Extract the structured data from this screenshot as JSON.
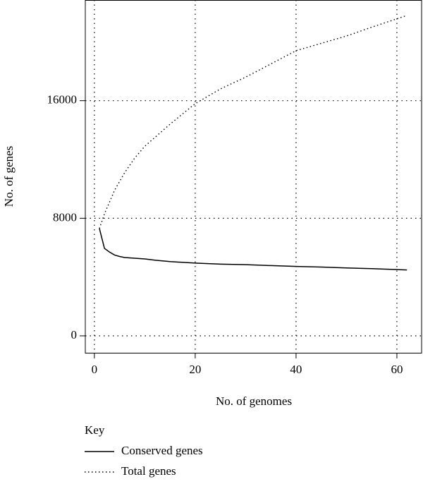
{
  "chart_data": {
    "type": "line",
    "xlabel": "No. of genomes",
    "ylabel": "No. of genes",
    "legend_title": "Key",
    "x": [
      1,
      2,
      3,
      4,
      5,
      6,
      8,
      10,
      12,
      15,
      20,
      25,
      30,
      35,
      40,
      45,
      50,
      55,
      62
    ],
    "series": [
      {
        "name": "Conserved genes",
        "color": "#000000",
        "linestyle": "solid",
        "values": [
          7300,
          5950,
          5700,
          5500,
          5400,
          5330,
          5280,
          5230,
          5150,
          5050,
          4950,
          4880,
          4840,
          4780,
          4720,
          4680,
          4620,
          4570,
          4480
        ]
      },
      {
        "name": "Total genes",
        "color": "#000000",
        "linestyle": "dotted",
        "values": [
          7300,
          8300,
          9100,
          9900,
          10500,
          11100,
          12100,
          12900,
          13500,
          14400,
          15800,
          16800,
          17600,
          18500,
          19400,
          19900,
          20400,
          21000,
          21800
        ]
      }
    ],
    "xlim": [
      -1.8,
      64.9
    ],
    "ylim": [
      -1152,
      22850
    ],
    "xticks": [
      0,
      20,
      40,
      60
    ],
    "yticks": [
      0,
      8000,
      16000
    ],
    "grid": true,
    "legend": "bottom-left"
  }
}
